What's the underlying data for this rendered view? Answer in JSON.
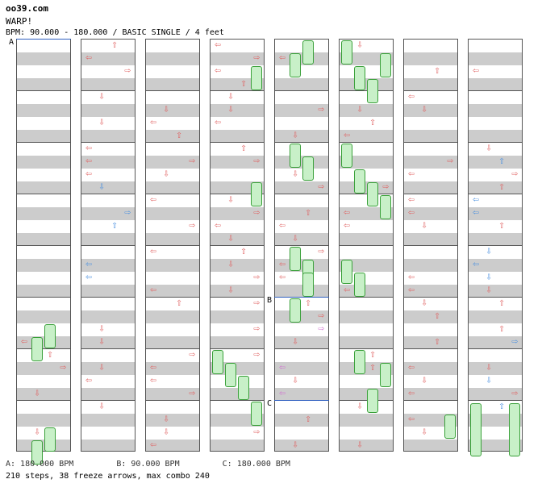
{
  "site": "oo39.com",
  "song_title": "WARP!",
  "bpm_info": "BPM: 90.000 - 180.000 / BASIC SINGLE / 4 feet",
  "bpm_markers": [
    {
      "label": "A"
    },
    {
      "label": "B"
    },
    {
      "label": "C"
    }
  ],
  "legend": [
    "A: 180.000 BPM",
    "B: 90.000 BPM",
    "C: 180.000 BPM"
  ],
  "stats": "210 steps, 38 freeze arrows, max combo 240",
  "colors": {
    "step_red": "#e06060",
    "step_blue": "#4a90e0",
    "step_pink": "#d070d0",
    "freeze_green": "#c8f0c8"
  }
}
